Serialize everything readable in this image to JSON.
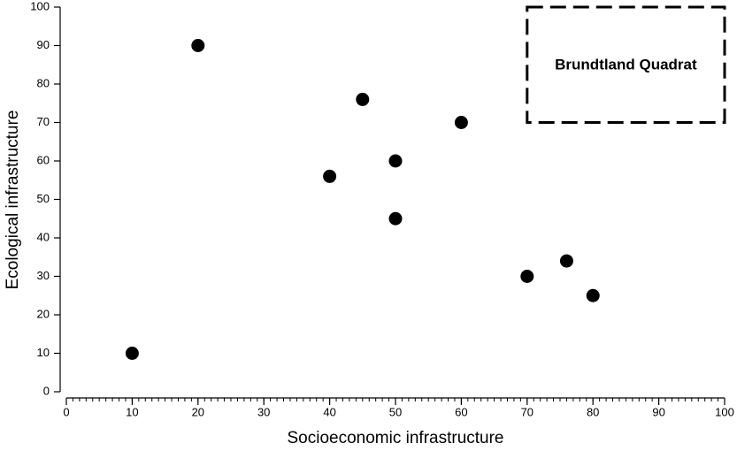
{
  "chart_data": {
    "type": "scatter",
    "x_label": "Socioeconomic infrastructure",
    "y_label": "Ecological infrastructure",
    "x": [
      10,
      20,
      40,
      45,
      50,
      50,
      60,
      70,
      76,
      80
    ],
    "values": [
      10,
      90,
      56,
      76,
      60,
      45,
      70,
      30,
      34,
      25
    ],
    "color": "#000000",
    "xlim": [
      0,
      100
    ],
    "ylim": [
      0,
      100
    ],
    "xticks": [
      0,
      10,
      20,
      30,
      40,
      50,
      60,
      70,
      80,
      90,
      100
    ],
    "yticks": [
      0,
      10,
      20,
      30,
      40,
      50,
      60,
      70,
      80,
      90,
      100
    ],
    "x_minor_step": 1,
    "annotation": {
      "text": "Brundtland Quadrat",
      "x": [
        70,
        100
      ],
      "y": [
        70,
        100
      ]
    }
  }
}
